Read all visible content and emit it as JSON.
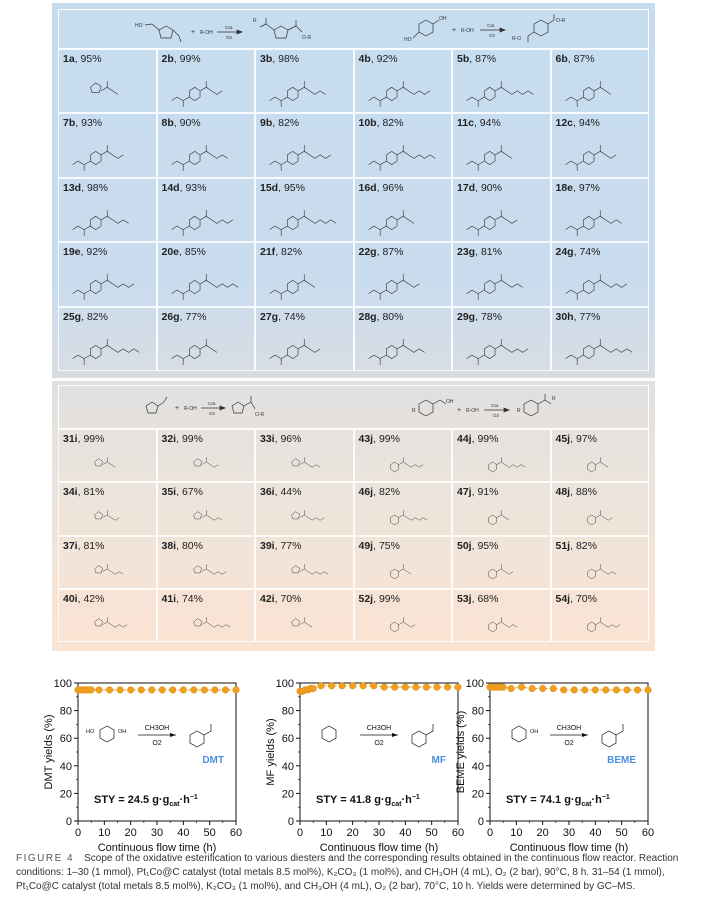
{
  "panel_top": {
    "scheme_left": {
      "reactant_label": "HO",
      "reagent": "R-OH",
      "cat_above": "Cat.",
      "cat_below": "O2",
      "product_labels": [
        "R",
        "O-R"
      ]
    },
    "scheme_right": {
      "reactant_labels": [
        "OH",
        "HO"
      ],
      "reagent": "R-OH",
      "cat_above": "Cat.",
      "cat_below": "O2",
      "product_labels": [
        "O-R",
        "R-O"
      ]
    },
    "rows": [
      [
        {
          "id": "1a",
          "yield": "95%"
        },
        {
          "id": "2b",
          "yield": "99%"
        },
        {
          "id": "3b",
          "yield": "98%"
        },
        {
          "id": "4b",
          "yield": "92%"
        },
        {
          "id": "5b",
          "yield": "87%"
        },
        {
          "id": "6b",
          "yield": "87%"
        }
      ],
      [
        {
          "id": "7b",
          "yield": "93%"
        },
        {
          "id": "8b",
          "yield": "90%"
        },
        {
          "id": "9b",
          "yield": "82%"
        },
        {
          "id": "10b",
          "yield": "82%"
        },
        {
          "id": "11c",
          "yield": "94%"
        },
        {
          "id": "12c",
          "yield": "94%"
        }
      ],
      [
        {
          "id": "13d",
          "yield": "98%"
        },
        {
          "id": "14d",
          "yield": "93%"
        },
        {
          "id": "15d",
          "yield": "95%"
        },
        {
          "id": "16d",
          "yield": "96%"
        },
        {
          "id": "17d",
          "yield": "90%"
        },
        {
          "id": "18e",
          "yield": "97%"
        }
      ],
      [
        {
          "id": "19e",
          "yield": "92%"
        },
        {
          "id": "20e",
          "yield": "85%"
        },
        {
          "id": "21f",
          "yield": "82%"
        },
        {
          "id": "22g",
          "yield": "87%"
        },
        {
          "id": "23g",
          "yield": "81%"
        },
        {
          "id": "24g",
          "yield": "74%"
        }
      ],
      [
        {
          "id": "25g",
          "yield": "82%"
        },
        {
          "id": "26g",
          "yield": "77%"
        },
        {
          "id": "27g",
          "yield": "74%"
        },
        {
          "id": "28g",
          "yield": "80%"
        },
        {
          "id": "29g",
          "yield": "78%"
        },
        {
          "id": "30h",
          "yield": "77%"
        }
      ]
    ]
  },
  "panel_bottom": {
    "scheme_left": {
      "reagent": "R-OH",
      "cat_above": "Cat.",
      "cat_below": "O2",
      "product_labels": [
        "O-R"
      ]
    },
    "scheme_right": {
      "reactant_labels": [
        "R",
        "OH"
      ],
      "reagent": "R-OH",
      "cat_above": "Cat.",
      "cat_below": "O2",
      "product_labels": [
        "R",
        "R"
      ]
    },
    "rows": [
      [
        {
          "id": "31i",
          "yield": "99%"
        },
        {
          "id": "32i",
          "yield": "99%"
        },
        {
          "id": "33i",
          "yield": "96%"
        },
        {
          "id": "43j",
          "yield": "99%"
        },
        {
          "id": "44j",
          "yield": "99%"
        },
        {
          "id": "45j",
          "yield": "97%"
        }
      ],
      [
        {
          "id": "34i",
          "yield": "81%"
        },
        {
          "id": "35i",
          "yield": "67%"
        },
        {
          "id": "36i",
          "yield": "44%"
        },
        {
          "id": "46j",
          "yield": "82%"
        },
        {
          "id": "47j",
          "yield": "91%"
        },
        {
          "id": "48j",
          "yield": "88%"
        }
      ],
      [
        {
          "id": "37i",
          "yield": "81%"
        },
        {
          "id": "38i",
          "yield": "80%"
        },
        {
          "id": "39i",
          "yield": "77%"
        },
        {
          "id": "49j",
          "yield": "75%"
        },
        {
          "id": "50j",
          "yield": "95%"
        },
        {
          "id": "51j",
          "yield": "82%"
        }
      ],
      [
        {
          "id": "40i",
          "yield": "42%"
        },
        {
          "id": "41i",
          "yield": "74%"
        },
        {
          "id": "42i",
          "yield": "70%"
        },
        {
          "id": "52j",
          "yield": "99%"
        },
        {
          "id": "53j",
          "yield": "68%"
        },
        {
          "id": "54j",
          "yield": "70%"
        }
      ]
    ]
  },
  "chart_data": [
    {
      "type": "scatter",
      "ylabel": "DMT yields (%)",
      "xlabel": "Continuous flow time (h)",
      "xlim": [
        0,
        60
      ],
      "ylim": [
        0,
        100
      ],
      "xticks": [
        "0",
        "10",
        "20",
        "30",
        "40",
        "50",
        "60"
      ],
      "yticks": [
        "0",
        "20",
        "40",
        "60",
        "80",
        "100"
      ],
      "x": [
        0,
        1,
        2,
        3,
        4,
        5,
        8,
        12,
        16,
        20,
        24,
        28,
        32,
        36,
        40,
        44,
        48,
        52,
        56,
        60
      ],
      "y": [
        95,
        95,
        95,
        95,
        95,
        95,
        95,
        95,
        95,
        95,
        95,
        95,
        95,
        95,
        95,
        95,
        95,
        95,
        95,
        95
      ],
      "product_label": "DMT",
      "reaction_labels": {
        "reactant": "HO … OH",
        "above_arrow": "CH3OH",
        "below_arrow": "O2"
      },
      "reactant_text": [
        "HO",
        "OH"
      ],
      "sty_label": "STY = 24.5 g·g",
      "sty_sub": "cat",
      "sty_unit": "·h",
      "sty_sup": "−1",
      "marker_color": "#f0a020",
      "product_color": "#4a90e2"
    },
    {
      "type": "scatter",
      "ylabel": "MF yields (%)",
      "xlabel": "Continuous flow time (h)",
      "xlim": [
        0,
        60
      ],
      "ylim": [
        0,
        100
      ],
      "xticks": [
        "0",
        "10",
        "20",
        "30",
        "40",
        "50",
        "60"
      ],
      "yticks": [
        "0",
        "20",
        "40",
        "60",
        "80",
        "100"
      ],
      "x": [
        0,
        1,
        2,
        3,
        4,
        5,
        8,
        12,
        16,
        20,
        24,
        28,
        32,
        36,
        40,
        44,
        48,
        52,
        56,
        60
      ],
      "y": [
        94,
        94,
        95,
        95,
        96,
        96,
        98,
        98,
        98,
        98,
        98,
        98,
        97,
        97,
        97,
        97,
        97,
        97,
        97,
        97
      ],
      "product_label": "MF",
      "reaction_labels": {
        "above_arrow": "CH3OH",
        "below_arrow": "O2"
      },
      "reactant_text": [],
      "sty_label": "STY = 41.8 g·g",
      "sty_sub": "cat",
      "sty_unit": "·h",
      "sty_sup": "−1",
      "marker_color": "#f0a020",
      "product_color": "#4a90e2"
    },
    {
      "type": "scatter",
      "ylabel": "BEME yields (%)",
      "xlabel": "Continuous flow time (h)",
      "xlim": [
        0,
        60
      ],
      "ylim": [
        0,
        100
      ],
      "xticks": [
        "0",
        "10",
        "20",
        "30",
        "40",
        "50",
        "60"
      ],
      "yticks": [
        "0",
        "20",
        "40",
        "60",
        "80",
        "100"
      ],
      "x": [
        0,
        1,
        2,
        3,
        4,
        5,
        8,
        12,
        16,
        20,
        24,
        28,
        32,
        36,
        40,
        44,
        48,
        52,
        56,
        60
      ],
      "y": [
        97,
        97,
        97,
        97,
        97,
        97,
        96,
        97,
        96,
        96,
        96,
        95,
        95,
        95,
        95,
        95,
        95,
        95,
        95,
        95
      ],
      "product_label": "BEME",
      "reaction_labels": {
        "above_arrow": "CH3OH",
        "below_arrow": "O2"
      },
      "reactant_text": [
        "OH"
      ],
      "sty_label": "STY = 74.1 g·g",
      "sty_sub": "cat",
      "sty_unit": "·h",
      "sty_sup": "−1",
      "marker_color": "#f0a020",
      "product_color": "#4a90e2"
    }
  ],
  "caption": {
    "figure_label": "FIGURE 4",
    "text": "Scope of the oxidative esterification to various diesters and the corresponding results obtained in the continuous flow reactor. Reaction conditions: 1–30 (1 mmol), Pt₁Co@C catalyst (total metals 8.5 mol%), K₂CO₃ (1 mol%), and CH₃OH (4 mL), O₂ (2 bar), 90°C, 8 h. 31–54 (1 mmol), Pt₁Co@C catalyst (total metals 8.5 mol%), K₂CO₃ (1 mol%), and CH₃OH (4 mL), O₂ (2 bar), 70°C, 10 h. Yields were determined by GC–MS."
  }
}
